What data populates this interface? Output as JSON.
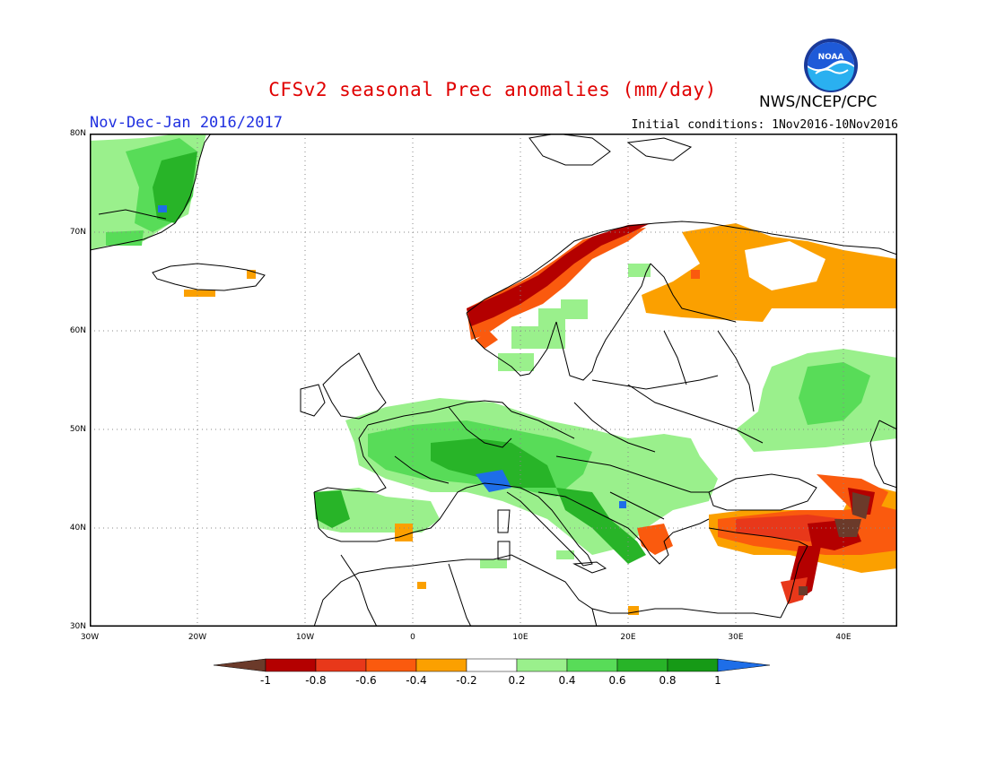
{
  "title": "CFSv2 seasonal Prec anomalies (mm/day)",
  "period": "Nov-Dec-Jan 2016/2017",
  "initial_conditions": "Initial conditions: 1Nov2016-10Nov2016",
  "agency": "NWS/NCEP/CPC",
  "logo_text": "NOAA",
  "map": {
    "lon_range": [
      -30,
      45
    ],
    "lat_range": [
      30,
      80
    ],
    "lat_labels": [
      "80N",
      "70N",
      "60N",
      "50N",
      "40N",
      "30N"
    ],
    "lon_labels": [
      "30W",
      "20W",
      "10W",
      "0",
      "10E",
      "20E",
      "30E",
      "40E"
    ]
  },
  "legend": {
    "labels": [
      "-1",
      "-0.8",
      "-0.6",
      "-0.4",
      "-0.2",
      "0.2",
      "0.4",
      "0.6",
      "0.8",
      "1"
    ],
    "colors": [
      "#6b3a2a",
      "#b40000",
      "#e8381a",
      "#fa5a0e",
      "#fba000",
      "#ffffff",
      "#9af08c",
      "#58dc58",
      "#28b428",
      "#169a16",
      "#1e6ee8"
    ]
  }
}
